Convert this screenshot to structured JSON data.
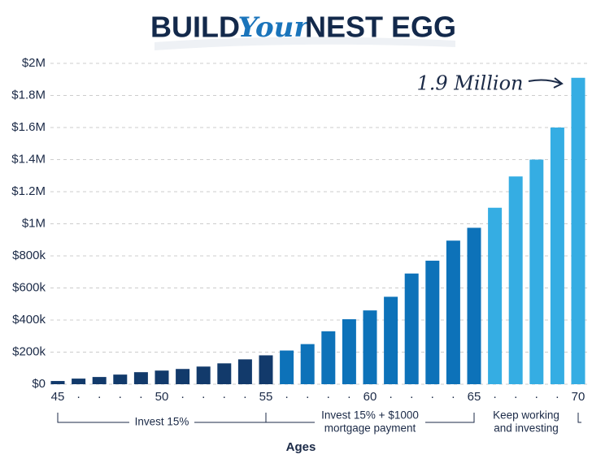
{
  "chart_data": {
    "type": "bar",
    "title_parts": [
      "BUILD",
      "Your",
      "NEST EGG"
    ],
    "annotation": "1.9 Million",
    "x_label": "Ages",
    "categories": [
      "45",
      "·",
      "·",
      "·",
      "·",
      "50",
      "·",
      "·",
      "·",
      "·",
      "55",
      "·",
      "·",
      "·",
      "·",
      "60",
      "·",
      "·",
      "·",
      "·",
      "65",
      "·",
      "·",
      "·",
      "·",
      "70"
    ],
    "values": [
      20000,
      35000,
      45000,
      60000,
      75000,
      85000,
      95000,
      110000,
      130000,
      155000,
      180000,
      210000,
      250000,
      330000,
      405000,
      460000,
      545000,
      690000,
      770000,
      895000,
      975000,
      1100000,
      1295000,
      1400000,
      1600000,
      1910000
    ],
    "colors": [
      "#123a6b",
      "#123a6b",
      "#123a6b",
      "#123a6b",
      "#123a6b",
      "#123a6b",
      "#123a6b",
      "#123a6b",
      "#123a6b",
      "#123a6b",
      "#123a6b",
      "#0d72b9",
      "#0d72b9",
      "#0d72b9",
      "#0d72b9",
      "#0d72b9",
      "#0d72b9",
      "#0d72b9",
      "#0d72b9",
      "#0d72b9",
      "#0d72b9",
      "#35ade3",
      "#35ade3",
      "#35ade3",
      "#35ade3",
      "#35ade3"
    ],
    "phases": [
      {
        "label": [
          "Invest 15%"
        ]
      },
      {
        "label": [
          "Invest 15% + $1000",
          "mortgage payment"
        ]
      },
      {
        "label": [
          "Keep working",
          "and investing"
        ]
      }
    ],
    "ylim": [
      0,
      2000000
    ],
    "yticks": [
      {
        "value": 0,
        "label": "$0"
      },
      {
        "value": 200000,
        "label": "$200k"
      },
      {
        "value": 400000,
        "label": "$400k"
      },
      {
        "value": 600000,
        "label": "$600k"
      },
      {
        "value": 800000,
        "label": "$800k"
      },
      {
        "value": 1000000,
        "label": "$1M"
      },
      {
        "value": 1200000,
        "label": "$1.2M"
      },
      {
        "value": 1400000,
        "label": "$1.4M"
      },
      {
        "value": 1600000,
        "label": "$1.6M"
      },
      {
        "value": 1800000,
        "label": "$1.8M"
      },
      {
        "value": 2000000,
        "label": "$2M"
      }
    ],
    "grid": true
  }
}
